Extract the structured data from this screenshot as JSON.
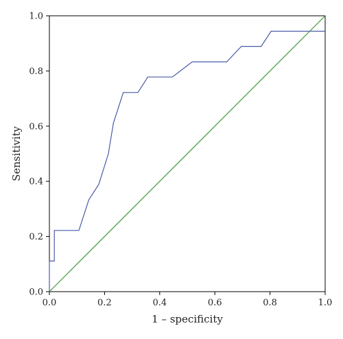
{
  "chart_data": {
    "type": "line",
    "xlabel": "1 – specificity",
    "ylabel": "Sensitivity",
    "xlim": [
      0.0,
      1.0
    ],
    "ylim": [
      0.0,
      1.0
    ],
    "x_ticks": [
      "0.0",
      "0.2",
      "0.4",
      "0.6",
      "0.8",
      "1.0"
    ],
    "y_ticks": [
      "0.0",
      "0.2",
      "0.4",
      "0.6",
      "0.8",
      "1.0"
    ],
    "grid": false,
    "legend": "none",
    "series": [
      {
        "color": "#4a5aa8",
        "x": [
          0.0,
          0.0,
          0.018,
          0.018,
          0.107,
          0.143,
          0.179,
          0.214,
          0.232,
          0.268,
          0.321,
          0.357,
          0.446,
          0.518,
          0.643,
          0.696,
          0.768,
          0.804,
          1.0
        ],
        "y": [
          0.0,
          0.111,
          0.111,
          0.222,
          0.222,
          0.333,
          0.389,
          0.5,
          0.611,
          0.722,
          0.722,
          0.778,
          0.778,
          0.833,
          0.833,
          0.889,
          0.889,
          0.944,
          0.944
        ]
      },
      {
        "color": "#3a9a3a",
        "x": [
          0.0,
          1.0
        ],
        "y": [
          0.0,
          1.0
        ]
      }
    ]
  }
}
